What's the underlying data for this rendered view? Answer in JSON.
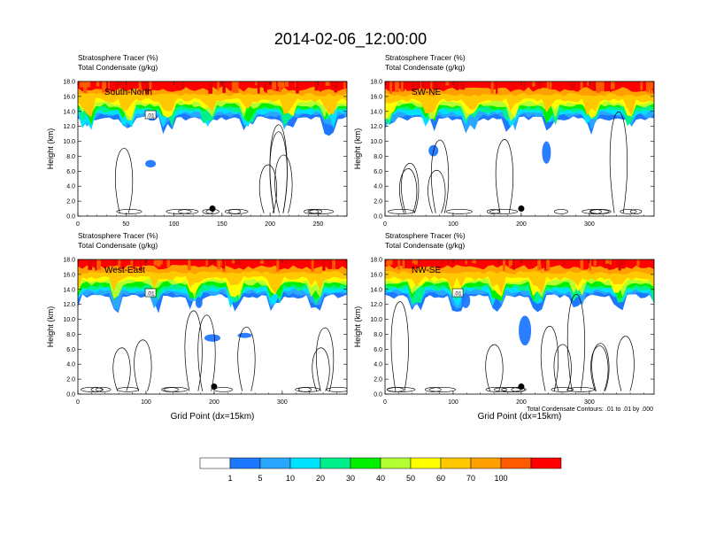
{
  "figure": {
    "title": "2014-02-06_12:00:00",
    "contour_note": "Total Condensate Contours: .01 to .01 by .000",
    "colorbar": {
      "colors": [
        "#ffffff",
        "#1e78ff",
        "#29a7ff",
        "#00e1ff",
        "#00f08c",
        "#00f000",
        "#b4ff32",
        "#ffff00",
        "#ffc800",
        "#ffa000",
        "#ff5a00",
        "#ff0000"
      ],
      "labels": [
        "1",
        "5",
        "10",
        "20",
        "30",
        "40",
        "50",
        "60",
        "70",
        "100"
      ]
    }
  },
  "chart_data": [
    {
      "type": "heatmap",
      "panel_label": "South-North",
      "left_title_line1": "Stratosphere Tracer   (%)",
      "left_title_line2": "Total Condensate   (g/kg)",
      "xlabel": "",
      "ylabel": "Height (km)",
      "xlim": [
        0,
        280
      ],
      "ylim": [
        0,
        18
      ],
      "xticks": [
        "0",
        "50",
        "100",
        "150",
        "200",
        "250"
      ],
      "yticks": [
        "0.0",
        "2.0",
        "4.0",
        "6.0",
        "8.0",
        "10.0",
        "12.0",
        "14.0",
        "16.0",
        "18.0"
      ],
      "contour_label": ".01",
      "marker_x": 140
    },
    {
      "type": "heatmap",
      "panel_label": "SW-NE",
      "left_title_line1": "Stratosphere Tracer   (%)",
      "left_title_line2": "Total Condensate   (g/kg)",
      "xlabel": "",
      "ylabel": "Height (km)",
      "xlim": [
        0,
        395
      ],
      "ylim": [
        0,
        18
      ],
      "xticks": [
        "0",
        "100",
        "200",
        "300"
      ],
      "yticks": [
        "0.0",
        "2.0",
        "4.0",
        "6.0",
        "8.0",
        "10.0",
        "12.0",
        "14.0",
        "16.0",
        "18.0"
      ],
      "contour_label": "",
      "marker_x": 200
    },
    {
      "type": "heatmap",
      "panel_label": "West-East",
      "left_title_line1": "Stratosphere Tracer   (%)",
      "left_title_line2": "Total Condensate   (g/kg)",
      "xlabel": "Grid Point (dx=15km)",
      "ylabel": "Height (km)",
      "xlim": [
        0,
        395
      ],
      "ylim": [
        0,
        18
      ],
      "xticks": [
        "0",
        "100",
        "200",
        "300"
      ],
      "yticks": [
        "0.0",
        "2.0",
        "4.0",
        "6.0",
        "8.0",
        "10.0",
        "12.0",
        "14.0",
        "16.0",
        "18.0"
      ],
      "contour_label": ".01",
      "marker_x": 200
    },
    {
      "type": "heatmap",
      "panel_label": "NW-SE",
      "left_title_line1": "Stratosphere Tracer   (%)",
      "left_title_line2": "Total Condensate   (g/kg)",
      "xlabel": "Grid Point (dx=15km)",
      "ylabel": "Height (km)",
      "xlim": [
        0,
        395
      ],
      "ylim": [
        0,
        18
      ],
      "xticks": [
        "0",
        "100",
        "200",
        "300"
      ],
      "yticks": [
        "0.0",
        "2.0",
        "4.0",
        "6.0",
        "8.0",
        "10.0",
        "12.0",
        "14.0",
        "16.0",
        "18.0"
      ],
      "contour_label": ".01",
      "marker_x": 200
    }
  ]
}
